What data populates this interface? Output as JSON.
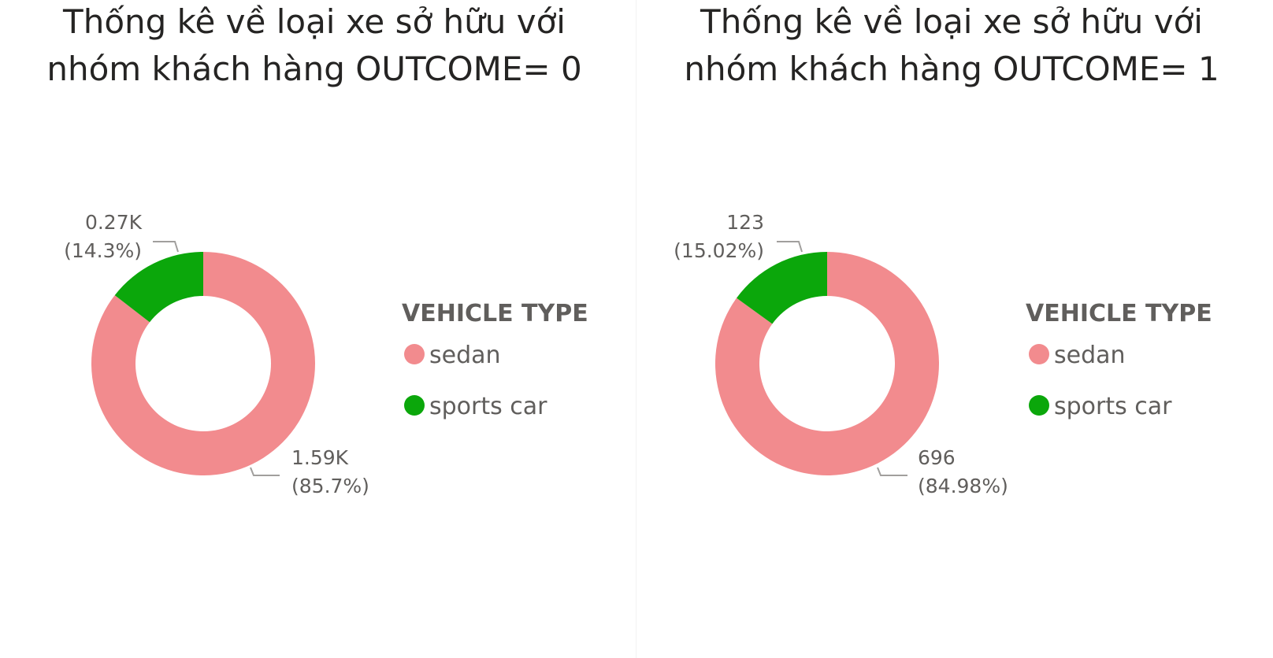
{
  "chart_data": [
    {
      "type": "pie",
      "title_lines": [
        "Thống kê về loại xe sở hữu với",
        "nhóm khách hàng OUTCOME= 0"
      ],
      "legend_title": "VEHICLE TYPE",
      "categories": [
        "sedan",
        "sports car"
      ],
      "values": [
        1590,
        270
      ],
      "shares_percent": [
        85.7,
        14.3
      ],
      "data_labels": [
        {
          "value": "1.59K",
          "percent": "(85.7%)"
        },
        {
          "value": "0.27K",
          "percent": "(14.3%)"
        }
      ],
      "colors": [
        "#F28B8E",
        "#0BA70B"
      ],
      "donut": true
    },
    {
      "type": "pie",
      "title_lines": [
        "Thống kê về loại xe sở hữu với",
        "nhóm khách hàng OUTCOME= 1"
      ],
      "legend_title": "VEHICLE TYPE",
      "categories": [
        "sedan",
        "sports car"
      ],
      "values": [
        696,
        123
      ],
      "shares_percent": [
        84.98,
        15.02
      ],
      "data_labels": [
        {
          "value": "696",
          "percent": "(84.98%)"
        },
        {
          "value": "123",
          "percent": "(15.02%)"
        }
      ],
      "colors": [
        "#F28B8E",
        "#0BA70B"
      ],
      "donut": true
    }
  ]
}
